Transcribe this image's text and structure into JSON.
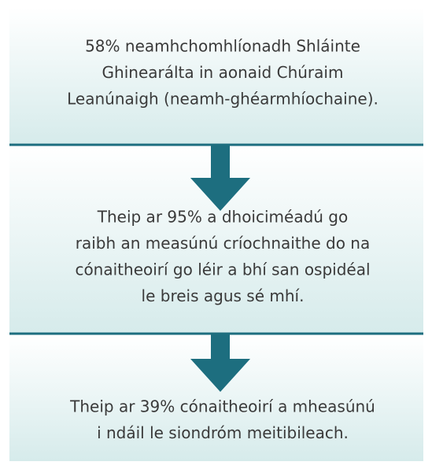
{
  "boxes": [
    {
      "lines": [
        "58% neamhchomhlíonadh Shláinte",
        "Ghinearálta in aonaid Chúraim",
        "Leanúnaigh (neamh-ghéarmhíochaine)."
      ]
    },
    {
      "lines": [
        "Theip ar 95% a dhoiciméadú go",
        "raibh an measúnú críochnaithe do na",
        "cónaitheoirí go léir a bhí san ospidéal",
        "le breis agus sé mhí."
      ]
    },
    {
      "lines": [
        "Theip ar 39% cónaitheoirí a mheasúnú",
        "i ndáil le siondróm meitibileach."
      ]
    }
  ]
}
